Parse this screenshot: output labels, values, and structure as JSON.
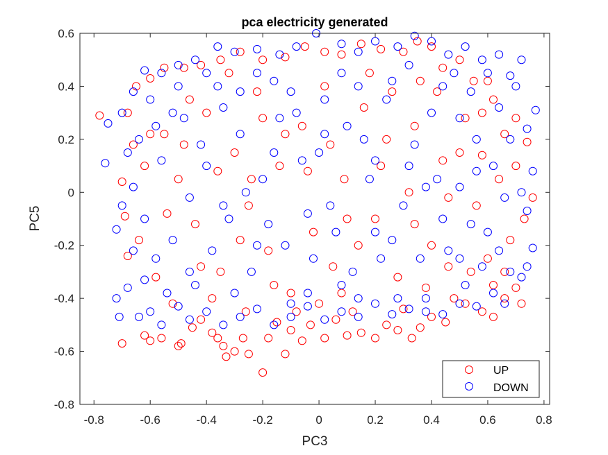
{
  "chart_data": {
    "type": "scatter",
    "title": "pca electricity generated",
    "xlabel": "PC3",
    "ylabel": "PC5",
    "xlim": [
      -0.85,
      0.82
    ],
    "ylim": [
      -0.8,
      0.6
    ],
    "xticks": [
      -0.8,
      -0.6,
      -0.4,
      -0.2,
      0,
      0.2,
      0.4,
      0.6,
      0.8
    ],
    "xtick_labels": [
      "-0.8",
      "-0.6",
      "-0.4",
      "-0.2",
      "0",
      "0.2",
      "0.4",
      "0.6",
      "0.8"
    ],
    "yticks": [
      -0.8,
      -0.6,
      -0.4,
      -0.2,
      0,
      0.2,
      0.4,
      0.6
    ],
    "ytick_labels": [
      "-0.8",
      "-0.6",
      "-0.4",
      "-0.2",
      "0",
      "0.2",
      "0.4",
      "0.6"
    ],
    "grid": false,
    "legend_position": "bottom-right",
    "marker": "open-circle",
    "series": [
      {
        "name": "UP",
        "color": "#ff0000",
        "points": [
          [
            -0.78,
            0.29
          ],
          [
            -0.7,
            0.04
          ],
          [
            -0.69,
            -0.09
          ],
          [
            -0.7,
            -0.57
          ],
          [
            -0.68,
            -0.24
          ],
          [
            -0.62,
            -0.54
          ],
          [
            -0.6,
            -0.56
          ],
          [
            -0.56,
            -0.55
          ],
          [
            -0.5,
            -0.58
          ],
          [
            -0.49,
            -0.57
          ],
          [
            -0.45,
            -0.51
          ],
          [
            -0.42,
            -0.48
          ],
          [
            -0.38,
            -0.53
          ],
          [
            -0.36,
            -0.55
          ],
          [
            -0.34,
            -0.58
          ],
          [
            -0.33,
            -0.62
          ],
          [
            -0.3,
            -0.6
          ],
          [
            -0.27,
            -0.55
          ],
          [
            -0.25,
            -0.61
          ],
          [
            -0.2,
            -0.68
          ],
          [
            -0.18,
            -0.55
          ],
          [
            -0.15,
            -0.49
          ],
          [
            -0.12,
            -0.61
          ],
          [
            -0.1,
            -0.52
          ],
          [
            -0.06,
            -0.56
          ],
          [
            -0.03,
            -0.5
          ],
          [
            0.02,
            -0.55
          ],
          [
            0.06,
            -0.48
          ],
          [
            0.1,
            -0.54
          ],
          [
            0.15,
            -0.53
          ],
          [
            0.2,
            -0.55
          ],
          [
            0.24,
            -0.5
          ],
          [
            0.28,
            -0.52
          ],
          [
            0.33,
            -0.55
          ],
          [
            0.36,
            -0.51
          ],
          [
            0.4,
            -0.47
          ],
          [
            0.45,
            -0.49
          ],
          [
            0.52,
            -0.42
          ],
          [
            0.58,
            -0.45
          ],
          [
            0.62,
            -0.47
          ],
          [
            0.66,
            -0.4
          ],
          [
            0.7,
            -0.36
          ],
          [
            0.72,
            -0.42
          ],
          [
            0.73,
            -0.1
          ],
          [
            0.76,
            -0.02
          ],
          [
            0.74,
            0.19
          ],
          [
            0.7,
            0.28
          ],
          [
            0.66,
            0.22
          ],
          [
            0.62,
            0.35
          ],
          [
            0.58,
            0.14
          ],
          [
            0.55,
            0.42
          ],
          [
            0.5,
            0.5
          ],
          [
            0.44,
            0.47
          ],
          [
            0.4,
            0.55
          ],
          [
            0.35,
            0.57
          ],
          [
            0.3,
            0.53
          ],
          [
            0.22,
            0.54
          ],
          [
            0.15,
            0.56
          ],
          [
            0.08,
            0.52
          ],
          [
            0.02,
            0.53
          ],
          [
            -0.05,
            0.55
          ],
          [
            -0.12,
            0.51
          ],
          [
            -0.2,
            0.5
          ],
          [
            -0.28,
            0.53
          ],
          [
            -0.35,
            0.5
          ],
          [
            -0.42,
            0.48
          ],
          [
            -0.48,
            0.47
          ],
          [
            -0.55,
            0.47
          ],
          [
            -0.6,
            0.43
          ],
          [
            -0.65,
            0.4
          ],
          [
            -0.68,
            0.3
          ],
          [
            -0.66,
            0.18
          ],
          [
            -0.62,
            0.1
          ],
          [
            -0.55,
            0.22
          ],
          [
            -0.5,
            0.05
          ],
          [
            -0.44,
            -0.12
          ],
          [
            -0.4,
            0.3
          ],
          [
            -0.35,
            -0.3
          ],
          [
            -0.3,
            0.15
          ],
          [
            -0.25,
            -0.05
          ],
          [
            -0.22,
            0.38
          ],
          [
            -0.18,
            -0.22
          ],
          [
            -0.14,
            0.1
          ],
          [
            -0.1,
            -0.38
          ],
          [
            -0.06,
            0.25
          ],
          [
            -0.02,
            -0.15
          ],
          [
            0.02,
            0.4
          ],
          [
            0.05,
            -0.28
          ],
          [
            0.09,
            0.05
          ],
          [
            0.12,
            -0.45
          ],
          [
            0.16,
            0.32
          ],
          [
            0.2,
            -0.1
          ],
          [
            0.24,
            0.2
          ],
          [
            0.28,
            -0.32
          ],
          [
            0.32,
            0.0
          ],
          [
            0.36,
            0.42
          ],
          [
            0.4,
            -0.2
          ],
          [
            0.44,
            0.12
          ],
          [
            0.48,
            -0.4
          ],
          [
            0.52,
            0.28
          ],
          [
            0.56,
            -0.05
          ],
          [
            0.6,
            -0.25
          ],
          [
            0.64,
            0.05
          ],
          [
            0.68,
            -0.18
          ],
          [
            0.62,
            -0.35
          ],
          [
            -0.58,
            -0.32
          ],
          [
            -0.52,
            -0.42
          ],
          [
            -0.46,
            0.35
          ],
          [
            -0.38,
            -0.4
          ],
          [
            -0.32,
            0.45
          ],
          [
            -0.26,
            -0.45
          ],
          [
            -0.2,
            0.28
          ],
          [
            -0.16,
            -0.35
          ],
          [
            -0.08,
            -0.45
          ],
          [
            0.0,
            -0.42
          ],
          [
            0.08,
            -0.38
          ],
          [
            0.14,
            -0.2
          ],
          [
            0.18,
            0.45
          ],
          [
            0.26,
            0.38
          ],
          [
            0.3,
            -0.44
          ],
          [
            0.34,
            0.25
          ],
          [
            0.38,
            -0.36
          ],
          [
            0.42,
            0.38
          ],
          [
            0.46,
            -0.28
          ],
          [
            0.5,
            0.15
          ],
          [
            -0.64,
            -0.18
          ],
          [
            -0.6,
            0.22
          ],
          [
            -0.54,
            -0.08
          ],
          [
            -0.48,
            0.18
          ],
          [
            -0.42,
            -0.28
          ],
          [
            -0.36,
            0.08
          ],
          [
            -0.28,
            -0.18
          ],
          [
            -0.24,
            0.05
          ],
          [
            -0.12,
            0.22
          ],
          [
            -0.04,
            0.08
          ],
          [
            0.04,
            0.18
          ],
          [
            0.1,
            -0.1
          ],
          [
            0.22,
            0.1
          ],
          [
            0.34,
            -0.12
          ],
          [
            0.46,
            -0.02
          ],
          [
            0.54,
            -0.3
          ],
          [
            0.58,
            0.3
          ],
          [
            0.66,
            -0.3
          ],
          [
            0.7,
            0.1
          ],
          [
            0.6,
            0.42
          ]
        ]
      },
      {
        "name": "DOWN",
        "color": "#0000ff",
        "points": [
          [
            -0.75,
            0.26
          ],
          [
            -0.76,
            0.11
          ],
          [
            -0.72,
            -0.14
          ],
          [
            -0.72,
            -0.4
          ],
          [
            -0.71,
            -0.47
          ],
          [
            -0.68,
            -0.36
          ],
          [
            -0.64,
            -0.47
          ],
          [
            -0.62,
            -0.33
          ],
          [
            -0.6,
            -0.45
          ],
          [
            -0.56,
            -0.5
          ],
          [
            -0.5,
            -0.43
          ],
          [
            -0.46,
            -0.48
          ],
          [
            -0.4,
            -0.45
          ],
          [
            -0.34,
            -0.5
          ],
          [
            -0.28,
            -0.47
          ],
          [
            -0.22,
            -0.44
          ],
          [
            -0.16,
            -0.5
          ],
          [
            -0.1,
            -0.47
          ],
          [
            -0.04,
            -0.43
          ],
          [
            0.02,
            -0.48
          ],
          [
            0.08,
            -0.45
          ],
          [
            0.14,
            -0.47
          ],
          [
            0.2,
            -0.42
          ],
          [
            0.26,
            -0.46
          ],
          [
            0.32,
            -0.44
          ],
          [
            0.38,
            -0.4
          ],
          [
            0.44,
            -0.46
          ],
          [
            0.5,
            -0.42
          ],
          [
            0.56,
            -0.43
          ],
          [
            0.62,
            -0.38
          ],
          [
            0.68,
            -0.3
          ],
          [
            0.72,
            -0.32
          ],
          [
            0.74,
            -0.28
          ],
          [
            0.76,
            -0.21
          ],
          [
            0.74,
            -0.07
          ],
          [
            0.72,
            0.0
          ],
          [
            0.76,
            0.08
          ],
          [
            0.74,
            0.24
          ],
          [
            0.77,
            0.31
          ],
          [
            0.7,
            0.4
          ],
          [
            0.72,
            0.5
          ],
          [
            0.68,
            0.44
          ],
          [
            0.64,
            0.52
          ],
          [
            0.58,
            0.5
          ],
          [
            0.52,
            0.55
          ],
          [
            0.46,
            0.52
          ],
          [
            0.4,
            0.57
          ],
          [
            0.34,
            0.59
          ],
          [
            0.28,
            0.55
          ],
          [
            0.2,
            0.57
          ],
          [
            0.14,
            0.53
          ],
          [
            0.08,
            0.56
          ],
          [
            -0.01,
            0.6
          ],
          [
            -0.08,
            0.55
          ],
          [
            -0.14,
            0.52
          ],
          [
            -0.22,
            0.54
          ],
          [
            -0.3,
            0.53
          ],
          [
            -0.36,
            0.55
          ],
          [
            -0.44,
            0.5
          ],
          [
            -0.5,
            0.48
          ],
          [
            -0.56,
            0.45
          ],
          [
            -0.62,
            0.46
          ],
          [
            -0.66,
            0.38
          ],
          [
            -0.7,
            0.3
          ],
          [
            -0.68,
            0.15
          ],
          [
            -0.66,
            0.02
          ],
          [
            -0.7,
            -0.05
          ],
          [
            -0.66,
            -0.22
          ],
          [
            -0.6,
            0.35
          ],
          [
            -0.56,
            0.12
          ],
          [
            -0.52,
            -0.18
          ],
          [
            -0.48,
            0.28
          ],
          [
            -0.44,
            -0.35
          ],
          [
            -0.4,
            0.1
          ],
          [
            -0.36,
            0.4
          ],
          [
            -0.32,
            -0.1
          ],
          [
            -0.28,
            0.22
          ],
          [
            -0.24,
            -0.3
          ],
          [
            -0.2,
            0.05
          ],
          [
            -0.16,
            0.42
          ],
          [
            -0.12,
            -0.2
          ],
          [
            -0.08,
            0.3
          ],
          [
            -0.04,
            -0.38
          ],
          [
            0.0,
            0.15
          ],
          [
            0.04,
            -0.05
          ],
          [
            0.08,
            0.45
          ],
          [
            0.12,
            -0.3
          ],
          [
            0.16,
            0.2
          ],
          [
            0.2,
            -0.15
          ],
          [
            0.24,
            0.35
          ],
          [
            0.28,
            -0.4
          ],
          [
            0.32,
            0.1
          ],
          [
            0.36,
            -0.25
          ],
          [
            0.4,
            0.3
          ],
          [
            0.44,
            -0.1
          ],
          [
            0.48,
            0.45
          ],
          [
            0.52,
            -0.35
          ],
          [
            0.56,
            0.2
          ],
          [
            0.6,
            -0.15
          ],
          [
            0.64,
            0.32
          ],
          [
            0.66,
            -0.02
          ],
          [
            0.62,
            0.1
          ],
          [
            0.58,
            -0.28
          ],
          [
            0.54,
            0.38
          ],
          [
            0.5,
            0.02
          ],
          [
            -0.62,
            -0.1
          ],
          [
            -0.58,
            0.25
          ],
          [
            -0.54,
            -0.38
          ],
          [
            -0.5,
            0.4
          ],
          [
            -0.46,
            -0.02
          ],
          [
            -0.42,
            0.18
          ],
          [
            -0.38,
            -0.22
          ],
          [
            -0.34,
            0.32
          ],
          [
            -0.3,
            -0.38
          ],
          [
            -0.26,
            0.0
          ],
          [
            -0.22,
            0.45
          ],
          [
            -0.18,
            -0.12
          ],
          [
            -0.14,
            0.28
          ],
          [
            -0.1,
            -0.42
          ],
          [
            -0.06,
            0.12
          ],
          [
            -0.02,
            -0.25
          ],
          [
            0.02,
            0.35
          ],
          [
            0.06,
            -0.15
          ],
          [
            0.1,
            0.25
          ],
          [
            0.14,
            -0.4
          ],
          [
            0.18,
            0.05
          ],
          [
            0.22,
            -0.25
          ],
          [
            0.26,
            0.42
          ],
          [
            0.3,
            -0.05
          ],
          [
            0.34,
            0.18
          ],
          [
            0.38,
            -0.45
          ],
          [
            0.42,
            0.05
          ],
          [
            0.46,
            -0.22
          ],
          [
            0.5,
            0.28
          ],
          [
            0.54,
            -0.12
          ],
          [
            -0.64,
            0.2
          ],
          [
            -0.58,
            -0.25
          ],
          [
            -0.52,
            0.3
          ],
          [
            -0.46,
            -0.3
          ],
          [
            -0.4,
            0.45
          ],
          [
            -0.34,
            -0.05
          ],
          [
            -0.28,
            0.38
          ],
          [
            -0.22,
            -0.2
          ],
          [
            -0.16,
            0.15
          ],
          [
            -0.1,
            0.38
          ],
          [
            -0.04,
            -0.08
          ],
          [
            0.02,
            0.22
          ],
          [
            0.08,
            -0.35
          ],
          [
            0.14,
            0.4
          ],
          [
            0.2,
            0.12
          ],
          [
            0.26,
            -0.18
          ],
          [
            0.32,
            0.48
          ],
          [
            0.38,
            0.02
          ],
          [
            0.44,
            0.4
          ],
          [
            0.5,
            -0.25
          ],
          [
            0.56,
            0.08
          ],
          [
            0.6,
            0.45
          ],
          [
            0.64,
            -0.22
          ],
          [
            0.68,
            0.2
          ],
          [
            0.66,
            -0.42
          ]
        ]
      }
    ]
  }
}
